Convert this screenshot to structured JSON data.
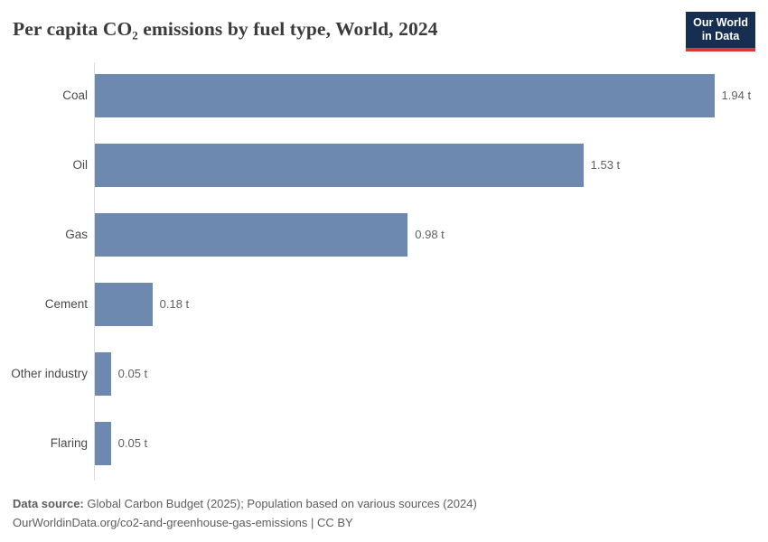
{
  "header": {
    "title": "Per capita CO₂ emissions by fuel type, World, 2024",
    "logo": {
      "line1": "Our World",
      "line2": "in Data"
    }
  },
  "chart_data": {
    "type": "bar",
    "orientation": "horizontal",
    "title": "Per capita CO₂ emissions by fuel type, World, 2024",
    "categories": [
      "Coal",
      "Oil",
      "Gas",
      "Cement",
      "Other industry",
      "Flaring"
    ],
    "values": [
      1.94,
      1.53,
      0.98,
      0.18,
      0.05,
      0.05
    ],
    "value_labels": [
      "1.94 t",
      "1.53 t",
      "0.98 t",
      "0.18 t",
      "0.05 t",
      "0.05 t"
    ],
    "unit": "t",
    "xlabel": "",
    "ylabel": "",
    "xlim": [
      0,
      2.063
    ],
    "grid": false,
    "legend": "none",
    "bar_color": "#6e89b0"
  },
  "footer": {
    "source_label": "Data source:",
    "source_text": " Global Carbon Budget (2025); Population based on various sources (2024)",
    "link_line": "OurWorldinData.org/co2-and-greenhouse-gas-emissions | CC BY"
  },
  "colors": {
    "bar": "#6e89b0",
    "axis": "#dcdcdc",
    "logo_bg": "#152e51",
    "logo_accent": "#d43b33",
    "title_text": "#3b3b3b",
    "label_text": "#4a4a4a",
    "value_text": "#616161",
    "footer_text": "#5d5d5d"
  }
}
